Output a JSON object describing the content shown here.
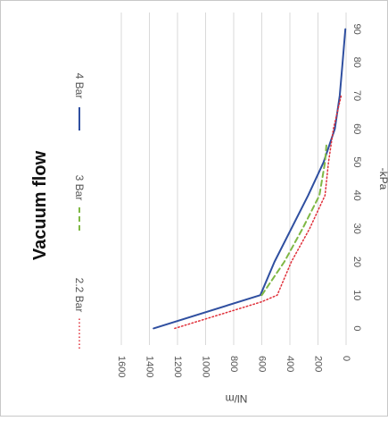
{
  "chart_data": {
    "type": "line",
    "title": "Vacuum flow",
    "xlabel": "-kPa",
    "ylabel": "Nl/m",
    "xlim": [
      -5,
      95
    ],
    "ylim": [
      0,
      1600
    ],
    "x_ticks": [
      "0",
      "10",
      "20",
      "30",
      "40",
      "50",
      "60",
      "70",
      "80",
      "90"
    ],
    "y_ticks": [
      "0",
      "200",
      "400",
      "600",
      "800",
      "1000",
      "1200",
      "1400",
      "1600"
    ],
    "grid": true,
    "legend": "top",
    "orientation": "rotated 90 degrees clockwise",
    "series": [
      {
        "name": "4 Bar",
        "color": "#2f4fa0",
        "style": "solid",
        "points": [
          [
            0,
            1370
          ],
          [
            10,
            610
          ],
          [
            20,
            510
          ],
          [
            30,
            390
          ],
          [
            40,
            270
          ],
          [
            50,
            160
          ],
          [
            60,
            80
          ],
          [
            70,
            45
          ],
          [
            80,
            25
          ],
          [
            90,
            5
          ]
        ]
      },
      {
        "name": "3 Bar",
        "color": "#7fb844",
        "style": "dashed",
        "points": [
          [
            10,
            600
          ],
          [
            20,
            440
          ],
          [
            30,
            310
          ],
          [
            40,
            190
          ],
          [
            50,
            150
          ],
          [
            55,
            140
          ]
        ]
      },
      {
        "name": "2.2 Bar",
        "color": "#e0303a",
        "style": "dotted",
        "points": [
          [
            0,
            1220
          ],
          [
            8,
            600
          ],
          [
            10,
            490
          ],
          [
            20,
            390
          ],
          [
            30,
            260
          ],
          [
            40,
            150
          ],
          [
            50,
            125
          ],
          [
            60,
            90
          ],
          [
            70,
            35
          ]
        ]
      }
    ]
  }
}
